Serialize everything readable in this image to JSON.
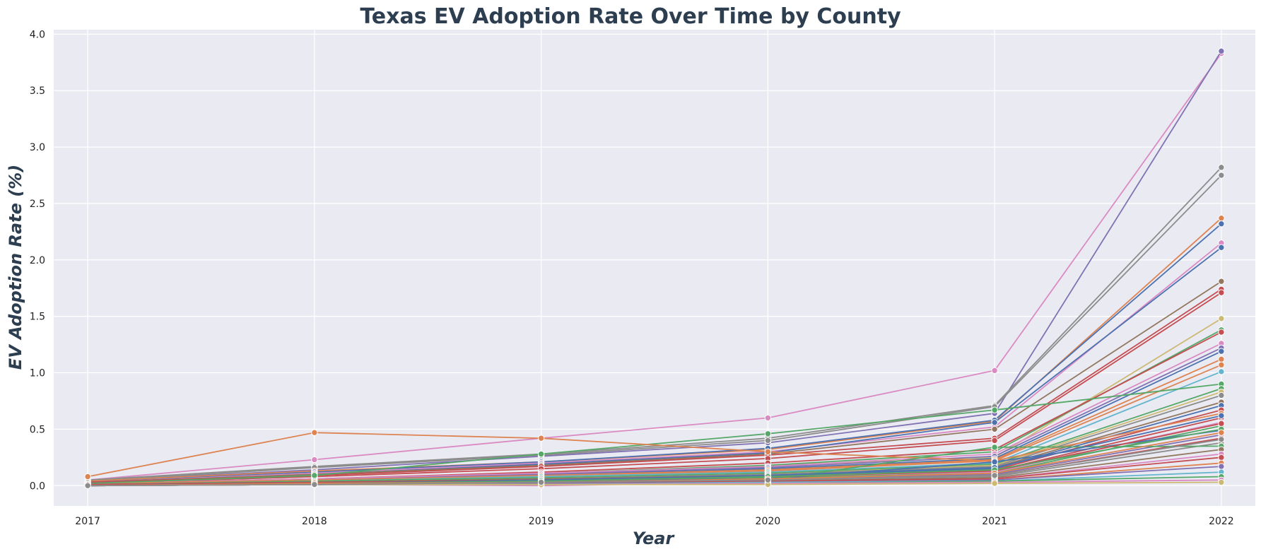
{
  "chart_data": {
    "type": "line",
    "title": "Texas EV Adoption Rate Over Time by County",
    "xlabel": "Year",
    "ylabel": "EV Adoption Rate (%)",
    "x": [
      2017,
      2018,
      2019,
      2020,
      2021,
      2022
    ],
    "x_tick_labels": [
      "2017",
      "2018",
      "2019",
      "2020",
      "2021",
      "2022"
    ],
    "y_ticks": [
      0.0,
      0.5,
      1.0,
      1.5,
      2.0,
      2.5,
      3.0,
      3.5,
      4.0
    ],
    "y_tick_labels": [
      "0.0",
      "0.5",
      "1.0",
      "1.5",
      "2.0",
      "2.5",
      "3.0",
      "3.5",
      "4.0"
    ],
    "xlim": [
      2016.85,
      2022.15
    ],
    "ylim": [
      -0.18,
      4.04
    ],
    "grid": true,
    "legend": "none",
    "style": {
      "background": "#EAEAF2",
      "grid_color": "#FFFFFF",
      "title_color": "#2C3E50"
    },
    "series": [
      {
        "color": "#DA8BC3",
        "values": [
          0.05,
          0.23,
          0.42,
          0.6,
          1.02,
          3.83
        ]
      },
      {
        "color": "#8172B3",
        "values": [
          0.04,
          0.14,
          0.26,
          0.38,
          0.64,
          3.85
        ]
      },
      {
        "color": "#8C8C8C",
        "values": [
          0.05,
          0.17,
          0.28,
          0.42,
          0.71,
          2.82
        ]
      },
      {
        "color": "#8C8C8C",
        "values": [
          0.04,
          0.16,
          0.27,
          0.4,
          0.7,
          2.75
        ]
      },
      {
        "color": "#DD8452",
        "values": [
          0.04,
          0.13,
          0.21,
          0.32,
          0.57,
          2.37
        ]
      },
      {
        "color": "#4C72B0",
        "values": [
          0.03,
          0.12,
          0.21,
          0.33,
          0.58,
          2.32
        ]
      },
      {
        "color": "#DA8BC3",
        "values": [
          0.03,
          0.11,
          0.2,
          0.3,
          0.52,
          2.15
        ]
      },
      {
        "color": "#4C72B0",
        "values": [
          0.03,
          0.1,
          0.19,
          0.29,
          0.56,
          2.11
        ]
      },
      {
        "color": "#937860",
        "values": [
          0.03,
          0.1,
          0.18,
          0.28,
          0.5,
          1.81
        ]
      },
      {
        "color": "#C44E52",
        "values": [
          0.03,
          0.09,
          0.17,
          0.27,
          0.42,
          1.74
        ]
      },
      {
        "color": "#C44E52",
        "values": [
          0.02,
          0.08,
          0.15,
          0.24,
          0.4,
          1.71
        ]
      },
      {
        "color": "#CCB974",
        "values": [
          0.02,
          0.05,
          0.1,
          0.18,
          0.25,
          1.48
        ]
      },
      {
        "color": "#55A868",
        "values": [
          0.02,
          0.06,
          0.11,
          0.18,
          0.3,
          1.38
        ]
      },
      {
        "color": "#C44E52",
        "values": [
          0.02,
          0.06,
          0.12,
          0.2,
          0.32,
          1.36
        ]
      },
      {
        "color": "#DA8BC3",
        "values": [
          0.02,
          0.06,
          0.11,
          0.17,
          0.28,
          1.26
        ]
      },
      {
        "color": "#8172B3",
        "values": [
          0.02,
          0.05,
          0.1,
          0.16,
          0.26,
          1.22
        ]
      },
      {
        "color": "#4C72B0",
        "values": [
          0.02,
          0.05,
          0.09,
          0.15,
          0.24,
          1.19
        ]
      },
      {
        "color": "#DD8452",
        "values": [
          0.02,
          0.05,
          0.09,
          0.14,
          0.23,
          1.12
        ]
      },
      {
        "color": "#DD8452",
        "values": [
          0.01,
          0.04,
          0.08,
          0.13,
          0.22,
          1.07
        ]
      },
      {
        "color": "#64B5CD",
        "values": [
          0.01,
          0.04,
          0.08,
          0.12,
          0.2,
          1.01
        ]
      },
      {
        "color": "#55A868",
        "values": [
          0.02,
          0.09,
          0.28,
          0.46,
          0.67,
          0.9
        ]
      },
      {
        "color": "#55A868",
        "values": [
          0.01,
          0.04,
          0.07,
          0.11,
          0.19,
          0.86
        ]
      },
      {
        "color": "#CCB974",
        "values": [
          0.01,
          0.03,
          0.06,
          0.1,
          0.18,
          0.83
        ]
      },
      {
        "color": "#8C8C8C",
        "values": [
          0.01,
          0.03,
          0.06,
          0.1,
          0.17,
          0.8
        ]
      },
      {
        "color": "#937860",
        "values": [
          0.01,
          0.03,
          0.06,
          0.09,
          0.16,
          0.74
        ]
      },
      {
        "color": "#4C72B0",
        "values": [
          0.01,
          0.03,
          0.05,
          0.09,
          0.15,
          0.71
        ]
      },
      {
        "color": "#C44E52",
        "values": [
          0.01,
          0.03,
          0.05,
          0.08,
          0.14,
          0.67
        ]
      },
      {
        "color": "#DD8452",
        "values": [
          0.08,
          0.47,
          0.42,
          0.3,
          0.22,
          0.64
        ]
      },
      {
        "color": "#C44E52",
        "values": [
          0.01,
          0.02,
          0.05,
          0.08,
          0.13,
          0.6
        ]
      },
      {
        "color": "#DA8BC3",
        "values": [
          0.01,
          0.02,
          0.04,
          0.07,
          0.12,
          0.56
        ]
      },
      {
        "color": "#55A868",
        "values": [
          0.01,
          0.02,
          0.04,
          0.07,
          0.11,
          0.53
        ]
      },
      {
        "color": "#4C72B0",
        "values": [
          0.01,
          0.02,
          0.04,
          0.06,
          0.21,
          0.49
        ]
      },
      {
        "color": "#8172B3",
        "values": [
          0.01,
          0.02,
          0.03,
          0.06,
          0.1,
          0.45
        ]
      },
      {
        "color": "#C44E52",
        "values": [
          0.01,
          0.02,
          0.03,
          0.05,
          0.09,
          0.42
        ]
      },
      {
        "color": "#8C8C8C",
        "values": [
          0.0,
          0.02,
          0.03,
          0.05,
          0.08,
          0.38
        ]
      },
      {
        "color": "#55A868",
        "values": [
          0.0,
          0.01,
          0.03,
          0.05,
          0.34,
          0.35
        ]
      },
      {
        "color": "#937860",
        "values": [
          0.0,
          0.01,
          0.02,
          0.04,
          0.07,
          0.32
        ]
      },
      {
        "color": "#DA8BC3",
        "values": [
          0.0,
          0.01,
          0.0,
          0.03,
          0.06,
          0.28
        ]
      },
      {
        "color": "#C44E52",
        "values": [
          0.0,
          0.01,
          0.02,
          0.04,
          0.06,
          0.25
        ]
      },
      {
        "color": "#DD8452",
        "values": [
          0.0,
          0.01,
          0.02,
          0.03,
          0.05,
          0.2
        ]
      },
      {
        "color": "#8172B3",
        "values": [
          0.0,
          0.01,
          0.02,
          0.03,
          0.05,
          0.17
        ]
      },
      {
        "color": "#64B5CD",
        "values": [
          0.0,
          0.01,
          0.01,
          0.03,
          0.04,
          0.12
        ]
      },
      {
        "color": "#55A868",
        "values": [
          0.0,
          0.01,
          0.01,
          0.02,
          0.04,
          0.08
        ]
      },
      {
        "color": "#DA8BC3",
        "values": [
          0.0,
          0.01,
          0.01,
          0.02,
          0.03,
          0.05
        ]
      },
      {
        "color": "#CCB974",
        "values": [
          0.0,
          0.01,
          0.01,
          0.01,
          0.02,
          0.03
        ]
      },
      {
        "color": "#4C72B0",
        "values": [
          0.0,
          0.02,
          0.05,
          0.09,
          0.16,
          0.62
        ]
      },
      {
        "color": "#C44E52",
        "values": [
          0.0,
          0.02,
          0.04,
          0.08,
          0.13,
          0.55
        ]
      },
      {
        "color": "#55A868",
        "values": [
          0.0,
          0.02,
          0.04,
          0.08,
          0.14,
          0.5
        ]
      },
      {
        "color": "#DD8452",
        "values": [
          0.0,
          0.02,
          0.03,
          0.06,
          0.11,
          0.47
        ]
      },
      {
        "color": "#8C8C8C",
        "values": [
          0.0,
          0.01,
          0.03,
          0.05,
          0.09,
          0.41
        ]
      }
    ]
  }
}
